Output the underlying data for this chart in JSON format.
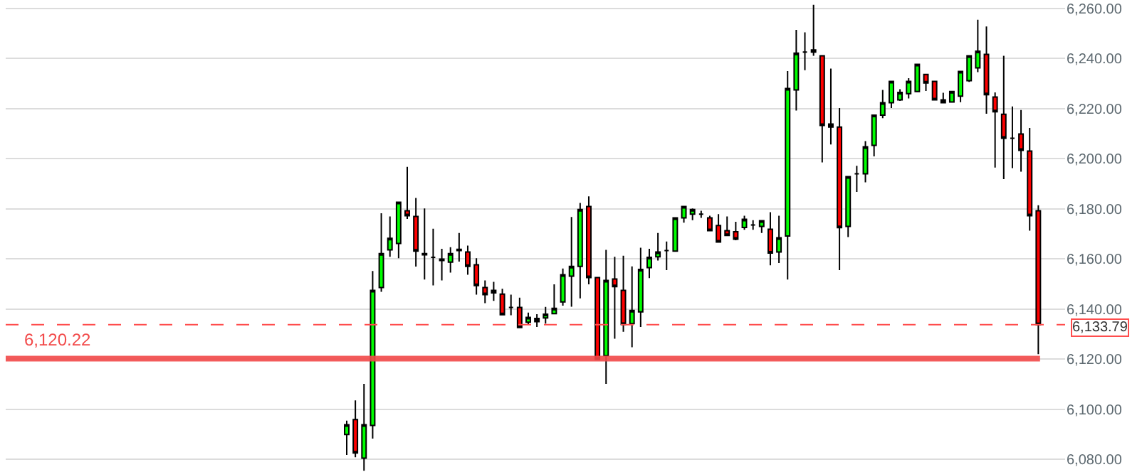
{
  "chart_data": {
    "type": "candlestick",
    "categories": [
      null,
      null,
      null,
      null,
      null,
      null,
      null,
      null,
      null,
      null,
      null,
      null,
      null,
      null,
      null,
      null,
      null,
      null,
      null,
      null,
      null,
      null,
      null,
      null,
      null,
      null,
      null,
      null,
      null,
      null,
      null,
      null,
      null,
      null,
      null,
      null,
      null,
      null,
      null,
      null,
      null,
      null,
      null,
      null,
      null,
      null,
      null,
      null,
      null,
      null,
      null,
      null,
      null,
      null,
      null,
      null,
      null,
      null,
      null,
      null,
      null,
      null,
      null,
      null,
      null,
      null,
      null,
      null,
      null,
      null,
      null,
      null,
      null,
      null,
      null,
      null,
      null,
      null,
      null,
      null,
      null,
      null,
      null,
      null,
      null,
      null,
      null,
      null,
      null,
      null,
      null,
      null,
      null,
      null,
      null,
      null,
      null,
      null,
      null,
      null,
      null,
      null,
      null,
      null,
      null,
      null,
      null,
      null,
      null,
      null,
      null,
      null,
      null,
      null,
      null,
      null,
      null,
      null,
      null,
      null
    ],
    "ohlc": [
      null,
      null,
      null,
      null,
      null,
      null,
      null,
      null,
      null,
      null,
      null,
      null,
      null,
      null,
      null,
      null,
      null,
      null,
      null,
      null,
      null,
      null,
      null,
      null,
      null,
      null,
      null,
      null,
      null,
      null,
      null,
      null,
      null,
      null,
      null,
      null,
      null,
      null,
      null,
      [
        6090.0,
        6095.5,
        6081.8,
        6093.9
      ],
      [
        6095.9,
        6103.6,
        6080.9,
        6082.6
      ],
      [
        6080.5,
        6110.2,
        6075.5,
        6093.9
      ],
      [
        6093.6,
        6155.2,
        6088.3,
        6147.5
      ],
      [
        6148.6,
        6178.3,
        6146.9,
        6162.2
      ],
      [
        6163.7,
        6177.0,
        6160.9,
        6168.3
      ],
      [
        6166.2,
        6182.9,
        6160.3,
        6182.7
      ],
      [
        6179.3,
        6196.8,
        6176.0,
        6177.3
      ],
      [
        6177.0,
        6184.4,
        6157.0,
        6163.2
      ],
      [
        6162.2,
        6180.2,
        6151.8,
        6161.7
      ],
      [
        6160.7,
        6172.1,
        6149.5,
        6160.7
      ],
      [
        6160.0,
        6164.1,
        6151.5,
        6159.4
      ],
      [
        6158.8,
        6164.7,
        6154.6,
        6162.2
      ],
      [
        6163.9,
        6170.4,
        6159.0,
        6163.4
      ],
      [
        6162.8,
        6165.4,
        6153.7,
        6157.1
      ],
      [
        6157.7,
        6160.3,
        6145.8,
        6149.4
      ],
      [
        6148.6,
        6151.5,
        6142.4,
        6145.8
      ],
      [
        6147.5,
        6150.9,
        6143.3,
        6146.5
      ],
      [
        6146.0,
        6148.1,
        6137.6,
        6137.8
      ],
      [
        6140.7,
        6145.8,
        6137.6,
        6140.7
      ],
      [
        6140.7,
        6144.6,
        6132.5,
        6132.7
      ],
      [
        6134.8,
        6138.6,
        6133.9,
        6136.7
      ],
      [
        6135.0,
        6138.0,
        6132.9,
        6136.3
      ],
      [
        6136.5,
        6140.9,
        6134.2,
        6138.0
      ],
      [
        6138.2,
        6149.9,
        6138.2,
        6140.3
      ],
      [
        6142.9,
        6156.2,
        6141.4,
        6153.7
      ],
      [
        6153.2,
        6176.8,
        6141.0,
        6157.1
      ],
      [
        6157.1,
        6182.4,
        6144.3,
        6179.8
      ],
      [
        6181.0,
        6185.0,
        6149.9,
        6152.6
      ],
      [
        6152.6,
        6152.8,
        6119.8,
        6120.0
      ],
      [
        6121.4,
        6163.7,
        6110.2,
        6151.5
      ],
      [
        6152.0,
        6160.9,
        6128.2,
        6149.0
      ],
      [
        6147.5,
        6161.3,
        6131.0,
        6133.9
      ],
      [
        6134.2,
        6157.1,
        6124.8,
        6139.5
      ],
      [
        6138.9,
        6164.5,
        6132.9,
        6155.9
      ],
      [
        6156.6,
        6164.1,
        6152.4,
        6160.7
      ],
      [
        6160.9,
        6170.4,
        6159.4,
        6162.8
      ],
      [
        6163.4,
        6167.0,
        6155.6,
        6163.4
      ],
      [
        6163.2,
        6176.6,
        6163.0,
        6176.4
      ],
      [
        6176.4,
        6181.0,
        6174.5,
        6181.0
      ],
      [
        6177.9,
        6180.2,
        6175.5,
        6179.8
      ],
      [
        6177.9,
        6179.3,
        6176.4,
        6177.9
      ],
      [
        6176.4,
        6177.3,
        6171.3,
        6171.3
      ],
      [
        6173.4,
        6177.9,
        6166.8,
        6166.8
      ],
      [
        6171.3,
        6177.0,
        6169.4,
        6169.4
      ],
      [
        6170.9,
        6174.9,
        6167.5,
        6167.9
      ],
      [
        6172.6,
        6177.3,
        6171.7,
        6175.9
      ],
      [
        6173.6,
        6175.5,
        6171.7,
        6173.6
      ],
      [
        6173.0,
        6175.3,
        6170.4,
        6175.3
      ],
      [
        6171.9,
        6178.7,
        6157.5,
        6162.4
      ],
      [
        6162.8,
        6177.3,
        6158.4,
        6168.5
      ],
      [
        6169.2,
        6235.0,
        6151.8,
        6228.1
      ],
      [
        6227.5,
        6251.5,
        6219.3,
        6242.2
      ],
      [
        6242.6,
        6250.5,
        6235.4,
        6242.6
      ],
      [
        6242.6,
        6261.5,
        6241.1,
        6243.5
      ],
      [
        6241.1,
        6241.1,
        6198.6,
        6213.3
      ],
      [
        6212.7,
        6236.0,
        6205.7,
        6213.9
      ],
      [
        6212.7,
        6220.3,
        6155.6,
        6172.5
      ],
      [
        6173.0,
        6192.9,
        6168.8,
        6192.9
      ],
      [
        6194.0,
        6197.2,
        6186.8,
        6194.0
      ],
      [
        6194.0,
        6207.1,
        6190.6,
        6204.8
      ],
      [
        6205.4,
        6217.4,
        6201.0,
        6217.4
      ],
      [
        6217.4,
        6227.5,
        6216.2,
        6222.4
      ],
      [
        6222.4,
        6230.9,
        6220.3,
        6230.9
      ],
      [
        6223.5,
        6227.8,
        6223.1,
        6226.5
      ],
      [
        6226.0,
        6232.2,
        6224.1,
        6230.9
      ],
      [
        6226.9,
        6237.7,
        6226.9,
        6237.7
      ],
      [
        6233.7,
        6233.7,
        6227.1,
        6230.3
      ],
      [
        6230.9,
        6230.9,
        6223.5,
        6223.5
      ],
      [
        6223.5,
        6226.4,
        6222.4,
        6222.4
      ],
      [
        6222.7,
        6226.9,
        6222.4,
        6226.9
      ],
      [
        6225.0,
        6234.9,
        6222.6,
        6234.9
      ],
      [
        6231.2,
        6241.1,
        6230.7,
        6241.1
      ],
      [
        6236.3,
        6255.5,
        6234.6,
        6243.0
      ],
      [
        6241.7,
        6252.8,
        6218.0,
        6225.6
      ],
      [
        6224.7,
        6226.5,
        6196.5,
        6218.8
      ],
      [
        6217.8,
        6241.1,
        6191.9,
        6208.2
      ],
      [
        6208.2,
        6220.9,
        6196.3,
        6208.2
      ],
      [
        6209.9,
        6219.5,
        6194.9,
        6203.4
      ],
      [
        6203.1,
        6212.3,
        6171.3,
        6177.3
      ],
      [
        6179.3,
        6181.5,
        6122.0,
        6133.79
      ]
    ],
    "colors": [
      null,
      null,
      null,
      null,
      null,
      null,
      null,
      null,
      null,
      null,
      null,
      null,
      null,
      null,
      null,
      null,
      null,
      null,
      null,
      null,
      null,
      null,
      null,
      null,
      null,
      null,
      null,
      null,
      null,
      null,
      null,
      null,
      null,
      null,
      null,
      null,
      null,
      null,
      null,
      "#00ff00",
      "#ff0000",
      "#00ff00",
      "#00ff00",
      "#00ff00",
      "#00ff00",
      "#00ff00",
      "#ff0000",
      "#ff0000",
      "#000000",
      "#000000",
      "#000000",
      "#00ff00",
      "#000000",
      "#ff0000",
      "#ff0000",
      "#ff0000",
      "#000000",
      "#ff0000",
      "#000000",
      "#ff0000",
      "#00ff00",
      "#000000",
      "#00ff00",
      "#00ff00",
      "#00ff00",
      "#00ff00",
      "#00ff00",
      "#ff0000",
      "#ff0000",
      "#00ff00",
      "#ff0000",
      "#ff0000",
      "#00ff00",
      "#00ff00",
      "#00ff00",
      "#00ff00",
      "#000000",
      "#00ff00",
      "#00ff00",
      "#00ff00",
      "#000000",
      "#ff0000",
      "#ff0000",
      "#ff0000",
      "#ff0000",
      "#00ff00",
      "#000000",
      "#00ff00",
      "#ff0000",
      "#00ff00",
      "#00ff00",
      "#00ff00",
      "#000000",
      "#000000",
      "#ff0000",
      "#000000",
      "#ff0000",
      "#00ff00",
      "#000000",
      "#00ff00",
      "#00ff00",
      "#00ff00",
      "#00ff00",
      "#00ff00",
      "#00ff00",
      "#00ff00",
      "#ff0000",
      "#ff0000",
      "#000000",
      "#00ff00",
      "#00ff00",
      "#00ff00",
      "#00ff00",
      "#ff0000",
      "#ff0000",
      "#ff0000",
      "#000000",
      "#ff0000",
      "#ff0000",
      "#ff0000"
    ],
    "ylim": [
      6075,
      6263.4
    ],
    "yticks": [
      {
        "value": 6080,
        "label": "6,080.00"
      },
      {
        "value": 6100,
        "label": "6,100.00"
      },
      {
        "value": 6120,
        "label": "6,120.00"
      },
      {
        "value": 6140,
        "label": "6,140.00"
      },
      {
        "value": 6160,
        "label": "6,160.00"
      },
      {
        "value": 6180,
        "label": "6,180.00"
      },
      {
        "value": 6200,
        "label": "6,200.00"
      },
      {
        "value": 6220,
        "label": "6,220.00"
      },
      {
        "value": 6240,
        "label": "6,240.00"
      },
      {
        "value": 6260,
        "label": "6,260.00"
      }
    ],
    "tick_labels": "y",
    "grid": "y",
    "ref_lines": [
      {
        "axis": "y",
        "value": 6120.22,
        "label": "6,120.22",
        "color": "#f24a4a",
        "line_style": "solid"
      },
      {
        "axis": "y",
        "value": 6133.79,
        "label": "6,133.79",
        "color": "#ff4d4d",
        "line_style": "dashed"
      }
    ]
  }
}
